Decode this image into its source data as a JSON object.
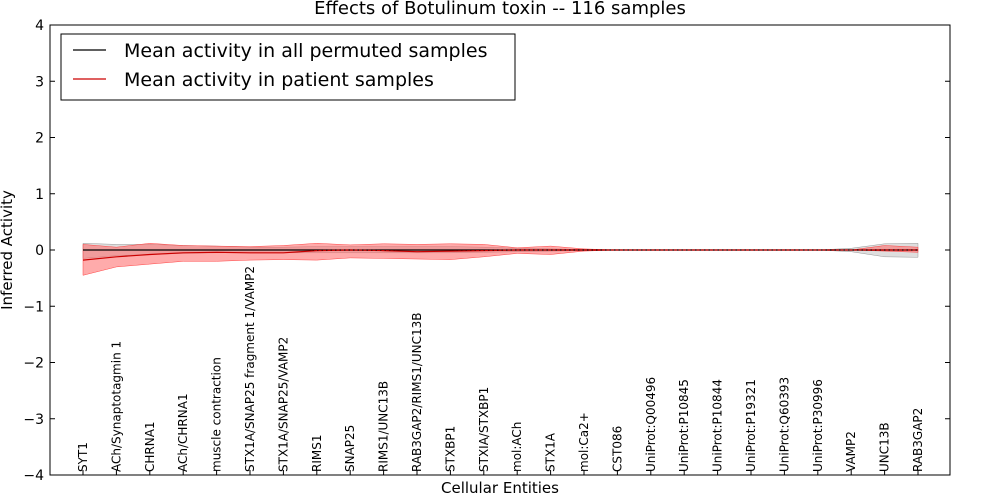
{
  "chart_data": {
    "type": "line",
    "title": "Effects of Botulinum toxin -- 116 samples",
    "xlabel": "Cellular Entities",
    "ylabel": "Inferred Activity",
    "ylim": [
      -4,
      4
    ],
    "yticks": [
      4,
      3,
      2,
      1,
      0,
      -1,
      -2,
      -3,
      -4
    ],
    "ytick_labels": [
      "4",
      "3",
      "2",
      "1",
      "0",
      "−1",
      "−2",
      "−3",
      "−4"
    ],
    "grid": false,
    "legend_position": "top-left",
    "categories": [
      "SYT1",
      "ACh/Synaptotagmin 1",
      "CHRNA1",
      "ACh/CHRNA1",
      "muscle contraction",
      "STX1A/SNAP25 fragment 1/VAMP2",
      "STX1A/SNAP25/VAMP2",
      "RIMS1",
      "SNAP25",
      "RIMS1/UNC13B",
      "RAB3GAP2/RIMS1/UNC13B",
      "STXBP1",
      "STXIA/STXBP1",
      "mol:ACh",
      "STX1A",
      "mol:Ca2+",
      "CST086",
      "UniProt:Q00496",
      "UniProt:P10845",
      "UniProt:P10844",
      "UniProt:P19321",
      "UniProt:Q60393",
      "UniProt:P30996",
      "VAMP2",
      "UNC13B",
      "RAB3GAP2"
    ],
    "series": [
      {
        "name": "Mean activity in all permuted samples",
        "color": "#000000",
        "values": [
          0,
          0,
          0,
          0,
          0,
          0,
          0,
          0,
          0,
          0,
          0,
          0,
          0,
          0,
          0,
          0,
          0,
          0,
          0,
          0,
          0,
          0,
          0,
          0,
          0,
          0
        ],
        "band_lower": [
          -0.15,
          -0.1,
          -0.08,
          -0.06,
          -0.05,
          -0.05,
          -0.05,
          -0.05,
          -0.05,
          -0.05,
          -0.05,
          -0.05,
          -0.04,
          -0.03,
          -0.02,
          -0.01,
          0,
          0,
          0,
          0,
          0,
          0,
          0,
          -0.03,
          -0.12,
          -0.13
        ],
        "band_upper": [
          0.12,
          0.1,
          0.1,
          0.08,
          0.07,
          0.05,
          0.05,
          0.06,
          0.06,
          0.06,
          0.06,
          0.06,
          0.05,
          0.03,
          0.02,
          0.01,
          0,
          0,
          0,
          0,
          0,
          0,
          0,
          0.03,
          0.11,
          0.12
        ],
        "band_color": "#c8c8c8"
      },
      {
        "name": "Mean activity in patient samples",
        "color": "#cc0000",
        "values": [
          -0.18,
          -0.12,
          -0.08,
          -0.05,
          -0.04,
          -0.05,
          -0.05,
          -0.01,
          0,
          -0.01,
          -0.03,
          -0.02,
          -0.01,
          0,
          0,
          0,
          0,
          0,
          0,
          0,
          0,
          0,
          0,
          0,
          0,
          0
        ],
        "band_lower": [
          -0.45,
          -0.3,
          -0.25,
          -0.2,
          -0.2,
          -0.18,
          -0.17,
          -0.18,
          -0.14,
          -0.15,
          -0.16,
          -0.17,
          -0.12,
          -0.06,
          -0.08,
          -0.02,
          0,
          0,
          0,
          0,
          0,
          0,
          0,
          0,
          -0.02,
          -0.04
        ],
        "band_upper": [
          0.1,
          0.05,
          0.12,
          0.08,
          0.07,
          0.06,
          0.08,
          0.12,
          0.09,
          0.11,
          0.1,
          0.11,
          0.1,
          0.04,
          0.07,
          0.02,
          0,
          0,
          0,
          0,
          0,
          0,
          0,
          0,
          0.08,
          0.05
        ],
        "band_color": "#ff6666"
      }
    ]
  }
}
